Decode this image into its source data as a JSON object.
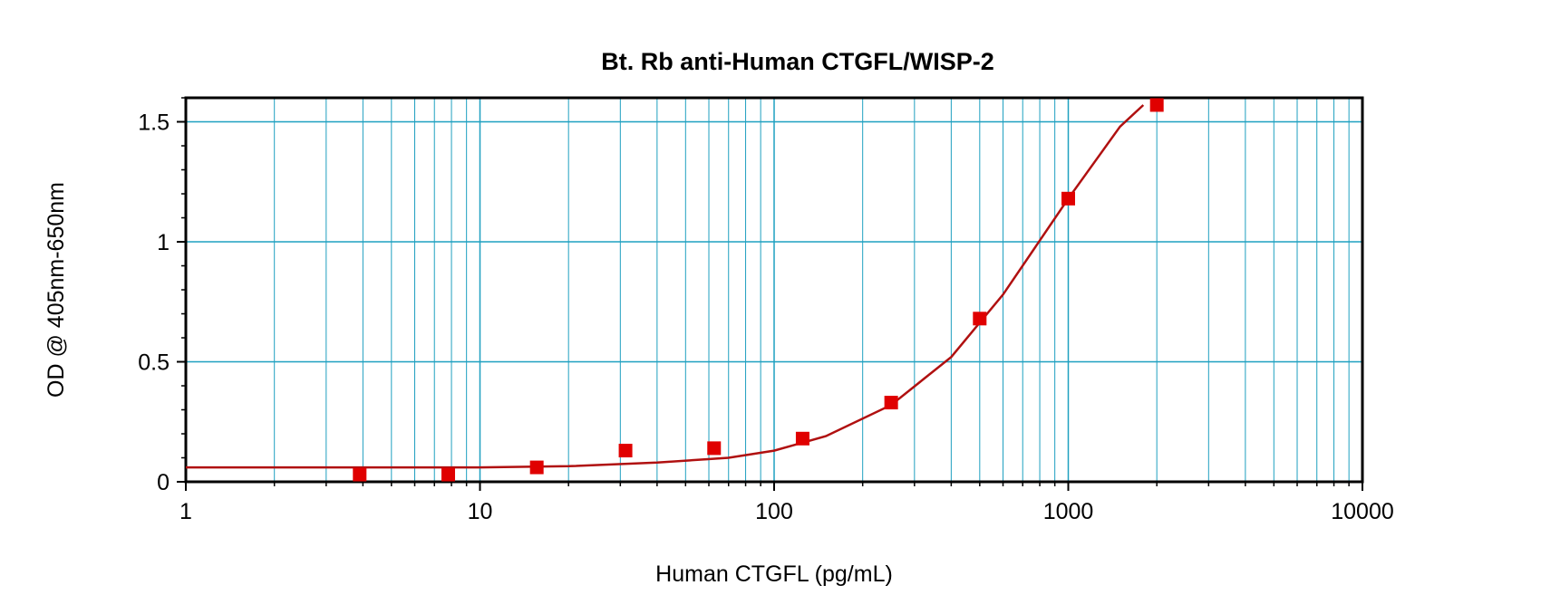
{
  "chart_data": {
    "type": "scatter",
    "title": "Bt. Rb anti-Human CTGFL/WISP-2",
    "xlabel": "Human CTGFL (pg/mL)",
    "ylabel": "OD @ 405nm-650nm",
    "xscale": "log",
    "xlim": [
      1,
      10000
    ],
    "ylim": [
      0,
      1.6
    ],
    "x_ticks": [
      1,
      10,
      100,
      1000,
      10000
    ],
    "x_tick_labels": [
      "1",
      "10",
      "100",
      "1000",
      "10000"
    ],
    "y_ticks": [
      0,
      0.5,
      1,
      1.5
    ],
    "y_tick_labels": [
      "0",
      "0.5",
      "1",
      "1.5"
    ],
    "grid": true,
    "series": [
      {
        "kind": "points",
        "marker": "square",
        "color": "#e00000",
        "x": [
          3.9,
          7.8,
          15.6,
          31.25,
          62.5,
          125,
          250,
          500,
          1000,
          2000
        ],
        "y": [
          0.03,
          0.03,
          0.06,
          0.13,
          0.14,
          0.18,
          0.33,
          0.68,
          1.18,
          1.57
        ]
      },
      {
        "kind": "fit-curve",
        "color": "#b01010",
        "x": [
          1,
          10,
          20,
          40,
          70,
          100,
          150,
          250,
          400,
          600,
          1000,
          1500,
          1800
        ],
        "y": [
          0.06,
          0.06,
          0.065,
          0.08,
          0.1,
          0.13,
          0.19,
          0.32,
          0.52,
          0.78,
          1.18,
          1.48,
          1.57
        ]
      }
    ],
    "colors": {
      "grid": "#1fa0c0",
      "marker": "#e00000",
      "curve": "#b01010",
      "axes": "#000000"
    }
  }
}
